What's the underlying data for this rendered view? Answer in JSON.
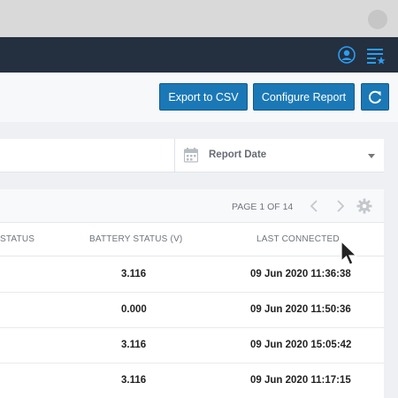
{
  "toolbar": {
    "export_label": "Export to CSV",
    "configure_label": "Configure Report"
  },
  "filter": {
    "report_date_label": "Report Date"
  },
  "pagination": {
    "text": "PAGE 1 OF 14"
  },
  "table": {
    "columns": [
      "STATUS",
      "BATTERY STATUS (V)",
      "LAST CONNECTED"
    ],
    "rows": [
      {
        "battery": "3.116",
        "last_connected": "09 Jun 2020 11:36:38"
      },
      {
        "battery": "0.000",
        "last_connected": "09 Jun 2020 11:50:36"
      },
      {
        "battery": "3.116",
        "last_connected": "09 Jun 2020 15:05:42"
      },
      {
        "battery": "3.116",
        "last_connected": "09 Jun 2020 11:17:15"
      }
    ]
  },
  "icons": {
    "user": "user-icon",
    "menu": "list-star-icon",
    "refresh": "refresh-icon",
    "calendar": "calendar-icon",
    "prev": "chevron-left-icon",
    "next": "chevron-right-icon",
    "settings": "gear-icon",
    "cursor": "mouse-pointer-icon"
  },
  "colors": {
    "accent": "#1b78b6",
    "topbar": "#243040",
    "background": "#eef0f3"
  }
}
